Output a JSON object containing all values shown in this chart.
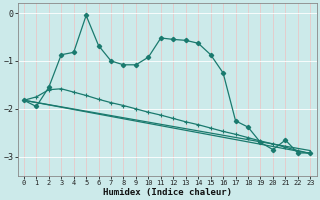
{
  "xlabel": "Humidex (Indice chaleur)",
  "bg_color": "#cceaea",
  "line_color": "#1a7a6e",
  "grid_color": "#e8f8f8",
  "xlim": [
    -0.5,
    23.5
  ],
  "ylim": [
    -3.4,
    0.2
  ],
  "yticks": [
    0,
    -1,
    -2,
    -3
  ],
  "xticks": [
    0,
    1,
    2,
    3,
    4,
    5,
    6,
    7,
    8,
    9,
    10,
    11,
    12,
    13,
    14,
    15,
    16,
    17,
    18,
    19,
    20,
    21,
    22,
    23
  ],
  "line1_x": [
    0,
    1,
    2,
    3,
    4,
    5,
    6,
    7,
    8,
    9,
    10,
    11,
    12,
    13,
    14,
    15,
    16,
    17,
    18,
    19,
    20,
    21,
    22,
    23
  ],
  "line1_y": [
    -1.82,
    -1.95,
    -1.55,
    -0.87,
    -0.82,
    -0.05,
    -0.68,
    -1.0,
    -1.08,
    -1.08,
    -0.92,
    -0.52,
    -0.55,
    -0.57,
    -0.63,
    -0.87,
    -1.25,
    -2.25,
    -2.38,
    -2.7,
    -2.85,
    -2.65,
    -2.92,
    -2.92
  ],
  "line2_x": [
    0,
    1,
    2,
    3,
    4,
    5,
    6,
    7,
    8,
    9,
    10,
    11,
    12,
    13,
    14,
    15,
    16,
    17,
    18,
    19,
    20,
    21,
    22,
    23
  ],
  "line2_y": [
    -1.82,
    -1.75,
    -1.6,
    -1.58,
    -1.65,
    -1.72,
    -1.8,
    -1.87,
    -1.93,
    -2.0,
    -2.07,
    -2.13,
    -2.2,
    -2.27,
    -2.33,
    -2.4,
    -2.47,
    -2.53,
    -2.6,
    -2.67,
    -2.73,
    -2.8,
    -2.87,
    -2.93
  ],
  "line3_x": [
    0,
    23
  ],
  "line3_y": [
    -1.82,
    -2.93
  ],
  "line4_x": [
    0,
    23
  ],
  "line4_y": [
    -1.82,
    -2.87
  ]
}
